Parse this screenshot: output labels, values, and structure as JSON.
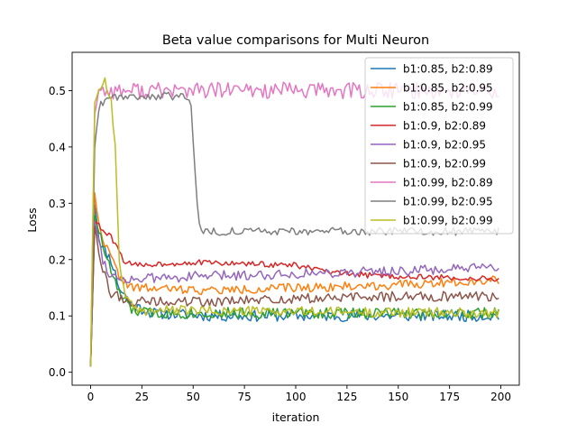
{
  "chart_data": {
    "type": "line",
    "title": "Beta value comparisons for Multi Neuron",
    "xlabel": "iteration",
    "ylabel": "Loss",
    "xlim": [
      -9,
      209
    ],
    "ylim": [
      -0.023,
      0.568
    ],
    "xticks": [
      0,
      25,
      50,
      75,
      100,
      125,
      150,
      175,
      200
    ],
    "yticks": [
      0.0,
      0.1,
      0.2,
      0.3,
      0.4,
      0.5
    ],
    "xtick_labels": [
      "0",
      "25",
      "50",
      "75",
      "100",
      "125",
      "150",
      "175",
      "200"
    ],
    "ytick_labels": [
      "0.0",
      "0.1",
      "0.2",
      "0.3",
      "0.4",
      "0.5"
    ],
    "grid": false,
    "legend_position": "top-right",
    "series": [
      {
        "name": "b1:0.85, b2:0.89",
        "color": "#1f77b4",
        "profile": [
          [
            0,
            0.01
          ],
          [
            2,
            0.3
          ],
          [
            4,
            0.24
          ],
          [
            6,
            0.22
          ],
          [
            10,
            0.2
          ],
          [
            14,
            0.15
          ],
          [
            20,
            0.12
          ],
          [
            30,
            0.105
          ],
          [
            60,
            0.1
          ],
          [
            200,
            0.1
          ]
        ],
        "noise": 0.01,
        "seed": 11
      },
      {
        "name": "b1:0.85, b2:0.95",
        "color": "#ff7f0e",
        "profile": [
          [
            0,
            0.01
          ],
          [
            2,
            0.32
          ],
          [
            4,
            0.26
          ],
          [
            8,
            0.22
          ],
          [
            14,
            0.17
          ],
          [
            20,
            0.15
          ],
          [
            60,
            0.145
          ],
          [
            100,
            0.15
          ],
          [
            150,
            0.155
          ],
          [
            200,
            0.165
          ]
        ],
        "noise": 0.008,
        "seed": 22
      },
      {
        "name": "b1:0.85, b2:0.99",
        "color": "#2ca02c",
        "profile": [
          [
            0,
            0.01
          ],
          [
            2,
            0.28
          ],
          [
            4,
            0.25
          ],
          [
            8,
            0.2
          ],
          [
            14,
            0.14
          ],
          [
            20,
            0.11
          ],
          [
            30,
            0.105
          ],
          [
            200,
            0.105
          ]
        ],
        "noise": 0.01,
        "seed": 33
      },
      {
        "name": "b1:0.9, b2:0.89",
        "color": "#d62728",
        "profile": [
          [
            0,
            0.01
          ],
          [
            2,
            0.27
          ],
          [
            6,
            0.25
          ],
          [
            10,
            0.24
          ],
          [
            16,
            0.2
          ],
          [
            20,
            0.19
          ],
          [
            50,
            0.195
          ],
          [
            100,
            0.19
          ],
          [
            120,
            0.175
          ],
          [
            150,
            0.17
          ],
          [
            200,
            0.165
          ]
        ],
        "noise": 0.005,
        "seed": 44
      },
      {
        "name": "b1:0.9, b2:0.95",
        "color": "#9467bd",
        "profile": [
          [
            0,
            0.01
          ],
          [
            2,
            0.27
          ],
          [
            6,
            0.2
          ],
          [
            10,
            0.17
          ],
          [
            20,
            0.165
          ],
          [
            50,
            0.17
          ],
          [
            100,
            0.175
          ],
          [
            150,
            0.18
          ],
          [
            200,
            0.185
          ]
        ],
        "noise": 0.009,
        "seed": 55
      },
      {
        "name": "b1:0.9, b2:0.99",
        "color": "#8c564b",
        "profile": [
          [
            0,
            0.01
          ],
          [
            2,
            0.26
          ],
          [
            6,
            0.18
          ],
          [
            10,
            0.14
          ],
          [
            20,
            0.125
          ],
          [
            60,
            0.125
          ],
          [
            100,
            0.13
          ],
          [
            150,
            0.135
          ],
          [
            200,
            0.135
          ]
        ],
        "noise": 0.009,
        "seed": 66
      },
      {
        "name": "b1:0.99, b2:0.89",
        "color": "#e377c2",
        "profile": [
          [
            0,
            0.01
          ],
          [
            2,
            0.46
          ],
          [
            4,
            0.5
          ],
          [
            200,
            0.5
          ]
        ],
        "noise": 0.015,
        "seed": 77
      },
      {
        "name": "b1:0.99, b2:0.95",
        "color": "#7f7f7f",
        "profile": [
          [
            0,
            0.01
          ],
          [
            2,
            0.4
          ],
          [
            4,
            0.47
          ],
          [
            8,
            0.49
          ],
          [
            48,
            0.49
          ],
          [
            49,
            0.47
          ],
          [
            51,
            0.35
          ],
          [
            53,
            0.26
          ],
          [
            55,
            0.25
          ],
          [
            200,
            0.25
          ]
        ],
        "noise": 0.007,
        "seed": 88
      },
      {
        "name": "b1:0.99, b2:0.99",
        "color": "#bcbd22",
        "profile": [
          [
            0,
            0.01
          ],
          [
            2,
            0.48
          ],
          [
            4,
            0.5
          ],
          [
            7,
            0.52
          ],
          [
            10,
            0.48
          ],
          [
            12,
            0.4
          ],
          [
            14,
            0.2
          ],
          [
            17,
            0.13
          ],
          [
            22,
            0.11
          ],
          [
            200,
            0.105
          ]
        ],
        "noise": 0.009,
        "seed": 99
      }
    ]
  }
}
